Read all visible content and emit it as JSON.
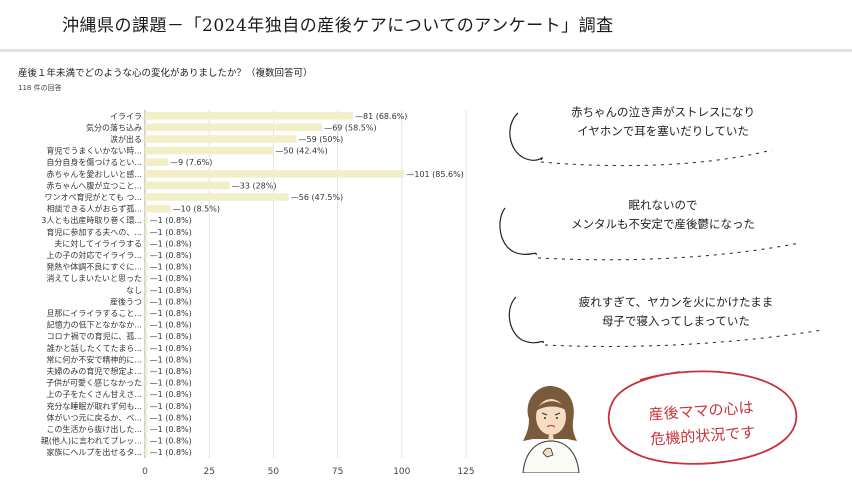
{
  "title": "沖縄県の課題－「2024年独自の産後ケアについてのアンケート」調査",
  "survey": {
    "question": "産後１年未満でどのような心の変化がありましたか？（複数回答可）",
    "responses": "118 件の回答"
  },
  "chart_data": {
    "type": "bar",
    "orientation": "horizontal",
    "title": "",
    "xlabel": "",
    "ylabel": "",
    "xlim": [
      0,
      125
    ],
    "x_ticks": [
      0,
      25,
      50,
      75,
      100,
      125
    ],
    "grid": true,
    "bar_color": "#f2eec8",
    "categories": [
      "イライラ",
      "気分の落ち込み",
      "涙が出る",
      "育児でうまくいかない時...",
      "自分自身を傷つけるとい...",
      "赤ちゃんを愛おしいと感...",
      "赤ちゃんへ腹が立つこと...",
      "ワンオペ育児がとても つ...",
      "相談できる人がおらず孤...",
      "3人とも出産時取り巻く環...",
      "育児に参加する夫への、...",
      "夫に対してイライラする",
      "上の子の対応でイライラ...",
      "発熱や体調不良にすぐに...",
      "消えてしまいたいと思った",
      "なし",
      "産後うつ",
      "旦那にイライラすること...",
      "記憶力の低下となかなか...",
      "コロナ禍での育児に、孤...",
      "誰かと話したくてたまら...",
      "常に何か不安で精神的に...",
      "夫婦のみの育児で想定よ...",
      "子供が可愛く感じなかった",
      "上の子をたくさん甘えさ...",
      "充分な睡眠が取れず何も...",
      "体がいつ元に戻るか、ベ...",
      "この生活から抜け出した...",
      "親(他人)に言われてプレッ...",
      "家族にヘルプを出せるタ..."
    ],
    "values": [
      81,
      69,
      59,
      50,
      9,
      101,
      33,
      56,
      10,
      1,
      1,
      1,
      1,
      1,
      1,
      1,
      1,
      1,
      1,
      1,
      1,
      1,
      1,
      1,
      1,
      1,
      1,
      1,
      1,
      1
    ],
    "value_labels": [
      "81 (68.6%)",
      "69 (58.5%)",
      "59 (50%)",
      "50 (42.4%)",
      "9 (7.6%)",
      "101 (85.6%)",
      "33 (28%)",
      "56 (47.5%)",
      "10 (8.5%)",
      "1 (0.8%)",
      "1 (0.8%)",
      "1 (0.8%)",
      "1 (0.8%)",
      "1 (0.8%)",
      "1 (0.8%)",
      "1 (0.8%)",
      "1 (0.8%)",
      "1 (0.8%)",
      "1 (0.8%)",
      "1 (0.8%)",
      "1 (0.8%)",
      "1 (0.8%)",
      "1 (0.8%)",
      "1 (0.8%)",
      "1 (0.8%)",
      "1 (0.8%)",
      "1 (0.8%)",
      "1 (0.8%)",
      "1 (0.8%)",
      "1 (0.8%)"
    ]
  },
  "comments": [
    {
      "line1": "赤ちゃんの泣き声がストレスになり",
      "line2": "イヤホンで耳を塞いだりしていた"
    },
    {
      "line1": "眠れないので",
      "line2": "メンタルも不安定で産後鬱になった"
    },
    {
      "line1": "疲れすぎて、ヤカンを火にかけたまま",
      "line2": "母子で寝入ってしまっていた"
    }
  ],
  "conclusion": {
    "line1": "産後ママの心は",
    "line2": "危機的状況です"
  },
  "colors": {
    "stamp": "#c8323a",
    "bar": "#f2eec8",
    "grid": "#dddddd"
  },
  "icons": {
    "avatar": "worried-mother-illustration"
  }
}
